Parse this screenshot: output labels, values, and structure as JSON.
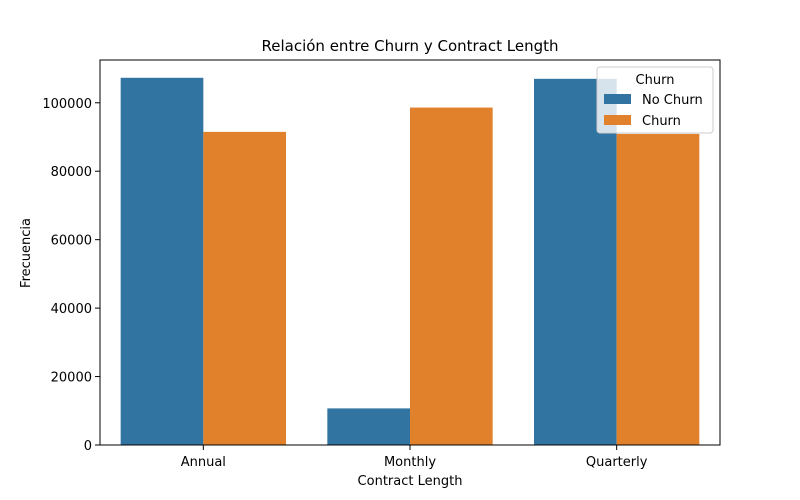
{
  "chart_data": {
    "type": "bar",
    "title": "Relación entre Churn y Contract Length",
    "xlabel": "Contract Length",
    "ylabel": "Frecuencia",
    "categories": [
      "Annual",
      "Monthly",
      "Quarterly"
    ],
    "series": [
      {
        "name": "No Churn",
        "values": [
          107300,
          10700,
          107000
        ],
        "color": "#3274a1"
      },
      {
        "name": "Churn",
        "values": [
          91500,
          98600,
          90900
        ],
        "color": "#e1812c"
      }
    ],
    "ylim": [
      0,
      112500
    ],
    "yticks": [
      0,
      20000,
      40000,
      60000,
      80000,
      100000
    ],
    "ytick_labels": [
      "0",
      "20000",
      "40000",
      "60000",
      "80000",
      "100000"
    ],
    "legend": {
      "title": "Churn",
      "position": "top-right"
    },
    "grid": false
  }
}
